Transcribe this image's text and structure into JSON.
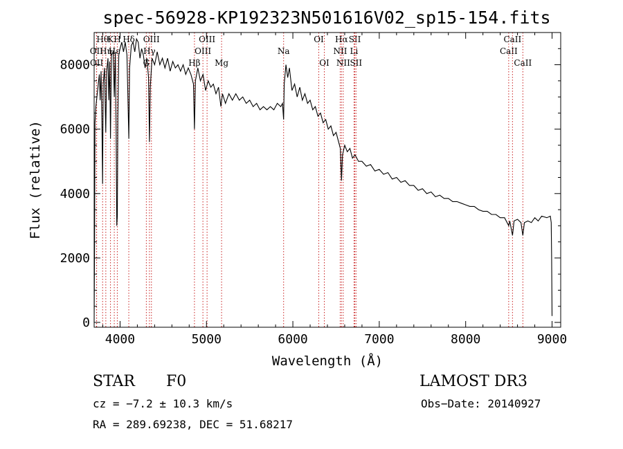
{
  "chart_data": {
    "type": "line",
    "title": "spec-56928-KP192323N501616V02_sp15-154.fits",
    "xlabel": "Wavelength (Å)",
    "ylabel": "Flux (relative)",
    "xlim": [
      3700,
      9100
    ],
    "ylim": [
      -150,
      9000
    ],
    "xticks": [
      4000,
      5000,
      6000,
      7000,
      8000,
      9000
    ],
    "yticks": [
      0,
      2000,
      4000,
      6000,
      8000
    ],
    "series": [
      {
        "name": "spectrum",
        "points": [
          [
            3700,
            0
          ],
          [
            3705,
            2400
          ],
          [
            3710,
            6200
          ],
          [
            3720,
            6700
          ],
          [
            3740,
            7200
          ],
          [
            3760,
            7700
          ],
          [
            3770,
            6900
          ],
          [
            3780,
            7800
          ],
          [
            3790,
            6300
          ],
          [
            3798,
            4300
          ],
          [
            3805,
            7400
          ],
          [
            3820,
            7900
          ],
          [
            3835,
            5900
          ],
          [
            3845,
            7800
          ],
          [
            3860,
            8200
          ],
          [
            3870,
            6900
          ],
          [
            3880,
            8100
          ],
          [
            3889,
            5700
          ],
          [
            3900,
            8300
          ],
          [
            3920,
            8400
          ],
          [
            3933,
            7000
          ],
          [
            3945,
            8400
          ],
          [
            3955,
            5900
          ],
          [
            3962,
            3000
          ],
          [
            3968,
            3300
          ],
          [
            3975,
            6400
          ],
          [
            3985,
            8300
          ],
          [
            4000,
            8500
          ],
          [
            4020,
            8700
          ],
          [
            4040,
            8400
          ],
          [
            4060,
            8700
          ],
          [
            4080,
            8300
          ],
          [
            4101,
            5700
          ],
          [
            4110,
            7900
          ],
          [
            4130,
            8600
          ],
          [
            4150,
            8700
          ],
          [
            4170,
            8400
          ],
          [
            4190,
            8800
          ],
          [
            4210,
            8700
          ],
          [
            4230,
            8200
          ],
          [
            4250,
            8500
          ],
          [
            4270,
            8300
          ],
          [
            4290,
            7900
          ],
          [
            4310,
            8200
          ],
          [
            4330,
            7600
          ],
          [
            4340,
            5600
          ],
          [
            4350,
            7300
          ],
          [
            4370,
            8200
          ],
          [
            4400,
            8000
          ],
          [
            4430,
            8400
          ],
          [
            4460,
            8000
          ],
          [
            4490,
            8200
          ],
          [
            4520,
            7900
          ],
          [
            4550,
            8200
          ],
          [
            4580,
            7800
          ],
          [
            4610,
            8100
          ],
          [
            4640,
            7900
          ],
          [
            4670,
            8000
          ],
          [
            4700,
            7800
          ],
          [
            4730,
            8000
          ],
          [
            4760,
            7700
          ],
          [
            4790,
            7900
          ],
          [
            4820,
            7700
          ],
          [
            4850,
            7400
          ],
          [
            4861,
            6000
          ],
          [
            4872,
            7500
          ],
          [
            4900,
            7900
          ],
          [
            4930,
            7500
          ],
          [
            4960,
            7700
          ],
          [
            4990,
            7200
          ],
          [
            5020,
            7500
          ],
          [
            5050,
            7300
          ],
          [
            5080,
            7400
          ],
          [
            5110,
            7100
          ],
          [
            5140,
            7300
          ],
          [
            5167,
            6700
          ],
          [
            5185,
            7100
          ],
          [
            5220,
            6800
          ],
          [
            5260,
            7100
          ],
          [
            5300,
            6900
          ],
          [
            5340,
            7100
          ],
          [
            5380,
            6900
          ],
          [
            5420,
            7000
          ],
          [
            5460,
            6800
          ],
          [
            5500,
            6900
          ],
          [
            5540,
            6700
          ],
          [
            5580,
            6800
          ],
          [
            5620,
            6600
          ],
          [
            5660,
            6700
          ],
          [
            5700,
            6600
          ],
          [
            5740,
            6700
          ],
          [
            5780,
            6600
          ],
          [
            5820,
            6800
          ],
          [
            5860,
            6700
          ],
          [
            5880,
            6800
          ],
          [
            5893,
            6300
          ],
          [
            5900,
            7400
          ],
          [
            5920,
            8000
          ],
          [
            5940,
            7600
          ],
          [
            5960,
            7900
          ],
          [
            5990,
            7200
          ],
          [
            6020,
            7400
          ],
          [
            6050,
            7000
          ],
          [
            6080,
            7300
          ],
          [
            6110,
            6900
          ],
          [
            6140,
            7100
          ],
          [
            6170,
            6800
          ],
          [
            6200,
            6900
          ],
          [
            6230,
            6600
          ],
          [
            6260,
            6700
          ],
          [
            6290,
            6400
          ],
          [
            6320,
            6500
          ],
          [
            6350,
            6200
          ],
          [
            6380,
            6300
          ],
          [
            6410,
            6000
          ],
          [
            6440,
            6100
          ],
          [
            6470,
            5800
          ],
          [
            6500,
            5900
          ],
          [
            6530,
            5600
          ],
          [
            6550,
            5400
          ],
          [
            6563,
            4400
          ],
          [
            6575,
            5200
          ],
          [
            6600,
            5500
          ],
          [
            6630,
            5300
          ],
          [
            6660,
            5400
          ],
          [
            6690,
            5100
          ],
          [
            6720,
            5200
          ],
          [
            6760,
            5000
          ],
          [
            6800,
            5000
          ],
          [
            6850,
            4850
          ],
          [
            6900,
            4900
          ],
          [
            6950,
            4700
          ],
          [
            7000,
            4750
          ],
          [
            7050,
            4600
          ],
          [
            7100,
            4650
          ],
          [
            7150,
            4450
          ],
          [
            7200,
            4500
          ],
          [
            7250,
            4350
          ],
          [
            7300,
            4400
          ],
          [
            7350,
            4250
          ],
          [
            7400,
            4250
          ],
          [
            7450,
            4100
          ],
          [
            7500,
            4150
          ],
          [
            7550,
            4000
          ],
          [
            7600,
            4050
          ],
          [
            7650,
            3900
          ],
          [
            7700,
            3950
          ],
          [
            7750,
            3850
          ],
          [
            7800,
            3850
          ],
          [
            7850,
            3750
          ],
          [
            7900,
            3750
          ],
          [
            7950,
            3700
          ],
          [
            8000,
            3650
          ],
          [
            8050,
            3600
          ],
          [
            8100,
            3600
          ],
          [
            8150,
            3500
          ],
          [
            8200,
            3450
          ],
          [
            8250,
            3450
          ],
          [
            8300,
            3350
          ],
          [
            8350,
            3350
          ],
          [
            8400,
            3250
          ],
          [
            8450,
            3250
          ],
          [
            8498,
            3000
          ],
          [
            8510,
            3150
          ],
          [
            8542,
            2700
          ],
          [
            8560,
            3150
          ],
          [
            8600,
            3200
          ],
          [
            8640,
            3100
          ],
          [
            8662,
            2700
          ],
          [
            8680,
            3100
          ],
          [
            8720,
            3150
          ],
          [
            8760,
            3100
          ],
          [
            8800,
            3250
          ],
          [
            8840,
            3150
          ],
          [
            8880,
            3300
          ],
          [
            8940,
            3250
          ],
          [
            8980,
            3300
          ],
          [
            8990,
            3100
          ],
          [
            8995,
            2000
          ],
          [
            9000,
            200
          ]
        ]
      }
    ],
    "line_markers": [
      {
        "label": "OII",
        "x": 3727,
        "row": 2
      },
      {
        "label": "OII",
        "x": 3729,
        "row": 3
      },
      {
        "label": "Hθ",
        "x": 3798,
        "row": 1
      },
      {
        "label": "Hη",
        "x": 3835,
        "row": 2
      },
      {
        "label": "K",
        "x": 3889,
        "row": 1
      },
      {
        "label": "Hε",
        "x": 3933,
        "row": 2
      },
      {
        "label": "H",
        "x": 3968,
        "row": 1
      },
      {
        "label": "Hδ",
        "x": 4101,
        "row": 1
      },
      {
        "label": "OIII",
        "x": 4363,
        "row": 1
      },
      {
        "label": "Hγ",
        "x": 4340,
        "row": 2
      },
      {
        "label": "G",
        "x": 4304,
        "row": 3
      },
      {
        "label": "Hβ",
        "x": 4861,
        "row": 3
      },
      {
        "label": "OIII",
        "x": 4959,
        "row": 2
      },
      {
        "label": "OIII",
        "x": 5007,
        "row": 1
      },
      {
        "label": "Mg",
        "x": 5175,
        "row": 3
      },
      {
        "label": "Na",
        "x": 5893,
        "row": 2
      },
      {
        "label": "OI",
        "x": 6300,
        "row": 1
      },
      {
        "label": "OI",
        "x": 6364,
        "row": 3
      },
      {
        "label": "NII",
        "x": 6548,
        "row": 2
      },
      {
        "label": "Hα",
        "x": 6563,
        "row": 1
      },
      {
        "label": "NII",
        "x": 6583,
        "row": 3
      },
      {
        "label": "SII",
        "x": 6717,
        "row": 1
      },
      {
        "label": "Li",
        "x": 6708,
        "row": 2
      },
      {
        "label": "SII",
        "x": 6731,
        "row": 3
      },
      {
        "label": "CaII",
        "x": 8498,
        "row": 2
      },
      {
        "label": "CaII",
        "x": 8542,
        "row": 1
      },
      {
        "label": "CaII",
        "x": 8662,
        "row": 3
      }
    ]
  },
  "info": {
    "object_class": "STAR",
    "subclass": "F0",
    "survey": "LAMOST DR3",
    "cz": "cz = −7.2 ± 10.3 km/s",
    "obs_date": "Obs−Date: 20140927",
    "coords": "RA = 289.69238, DEC =  51.68217"
  }
}
